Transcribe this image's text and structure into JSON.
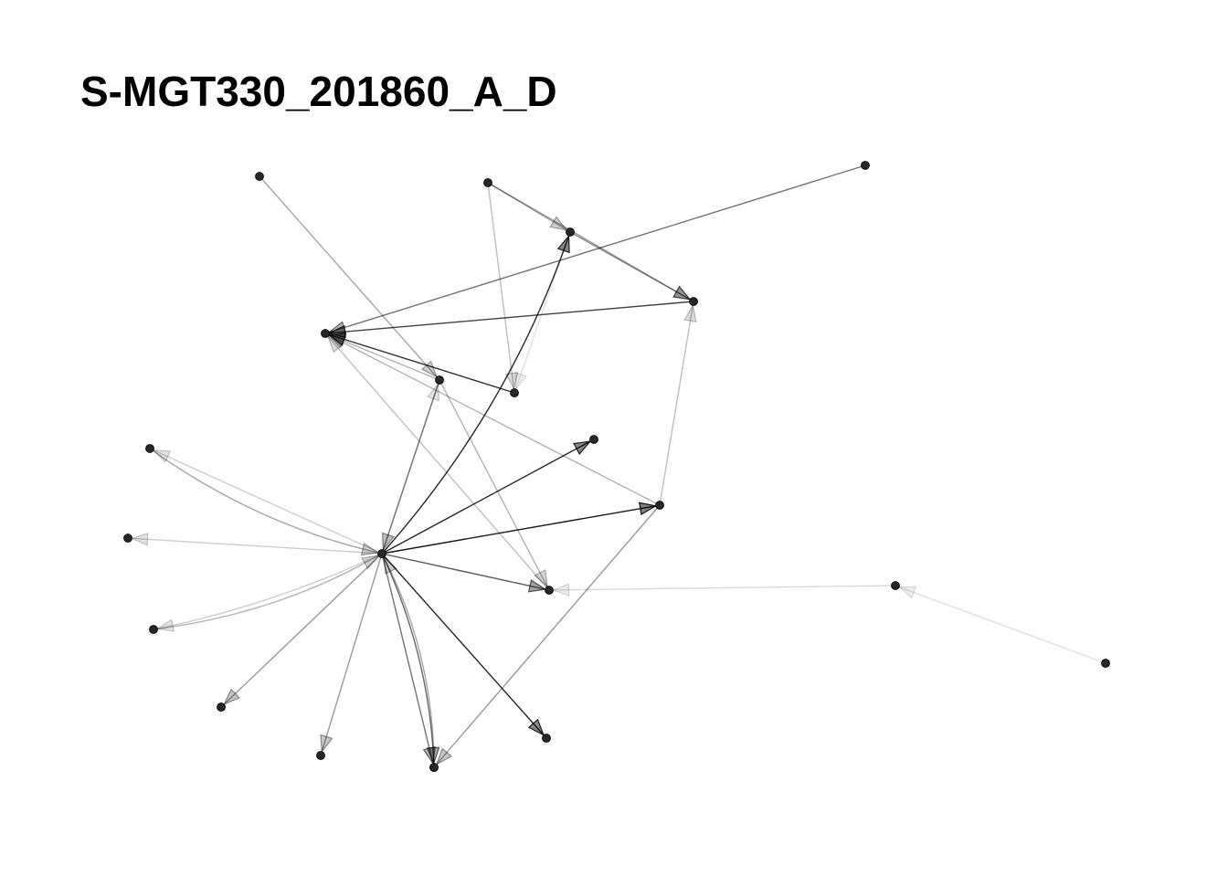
{
  "title": "S-MGT330_201860_A_D",
  "colors": {
    "node": "#262626",
    "edge": "#000000",
    "background": "#ffffff"
  },
  "graph": {
    "directed": true,
    "nodes": [
      "n1",
      "n2",
      "n3",
      "n4",
      "n5",
      "n6",
      "n7",
      "n8",
      "n9",
      "n10",
      "n11",
      "n12",
      "n13",
      "n14",
      "n15",
      "n16",
      "n17",
      "n18",
      "n19",
      "n20",
      "n21",
      "n22"
    ],
    "edges": [
      {
        "from": "n14",
        "to": "n3",
        "weight": 0.85
      },
      {
        "from": "n5",
        "to": "n14",
        "weight": 0.45
      },
      {
        "from": "n14",
        "to": "n5",
        "weight": 0.2
      },
      {
        "from": "n14",
        "to": "n8",
        "weight": 0.85
      },
      {
        "from": "n14",
        "to": "n10",
        "weight": 0.9
      },
      {
        "from": "n14",
        "to": "n13",
        "weight": 0.65
      },
      {
        "from": "n14",
        "to": "n15",
        "weight": 0.55
      },
      {
        "from": "n14",
        "to": "n20",
        "weight": 0.85
      },
      {
        "from": "n14",
        "to": "n19",
        "weight": 0.6
      },
      {
        "from": "n19",
        "to": "n14",
        "weight": 0.35
      },
      {
        "from": "n14",
        "to": "n18",
        "weight": 0.4
      },
      {
        "from": "n14",
        "to": "n17",
        "weight": 0.4
      },
      {
        "from": "n14",
        "to": "n16",
        "weight": 0.2
      },
      {
        "from": "n16",
        "to": "n14",
        "weight": 0.3
      },
      {
        "from": "n14",
        "to": "n12",
        "weight": 0.2
      },
      {
        "from": "n14",
        "to": "n9",
        "weight": 0.2
      },
      {
        "from": "n9",
        "to": "n14",
        "weight": 0.35
      },
      {
        "from": "n1",
        "to": "n5",
        "weight": 0.35
      },
      {
        "from": "n2",
        "to": "n3",
        "weight": 0.35
      },
      {
        "from": "n2",
        "to": "n4",
        "weight": 0.4
      },
      {
        "from": "n2",
        "to": "n7",
        "weight": 0.25
      },
      {
        "from": "n3",
        "to": "n4",
        "weight": 0.45
      },
      {
        "from": "n4",
        "to": "n6",
        "weight": 0.75
      },
      {
        "from": "n10",
        "to": "n4",
        "weight": 0.25
      },
      {
        "from": "n10",
        "to": "n6",
        "weight": 0.3
      },
      {
        "from": "n10",
        "to": "n15",
        "weight": 0.4
      },
      {
        "from": "n11",
        "to": "n6",
        "weight": 0.55
      },
      {
        "from": "n5",
        "to": "n6",
        "weight": 0.3
      },
      {
        "from": "n7",
        "to": "n6",
        "weight": 0.8
      },
      {
        "from": "n13",
        "to": "n6",
        "weight": 0.25
      },
      {
        "from": "n5",
        "to": "n13",
        "weight": 0.3
      },
      {
        "from": "n21",
        "to": "n13",
        "weight": 0.15
      },
      {
        "from": "n22",
        "to": "n21",
        "weight": 0.12
      },
      {
        "from": "n3",
        "to": "n7",
        "weight": 0.12
      }
    ]
  }
}
